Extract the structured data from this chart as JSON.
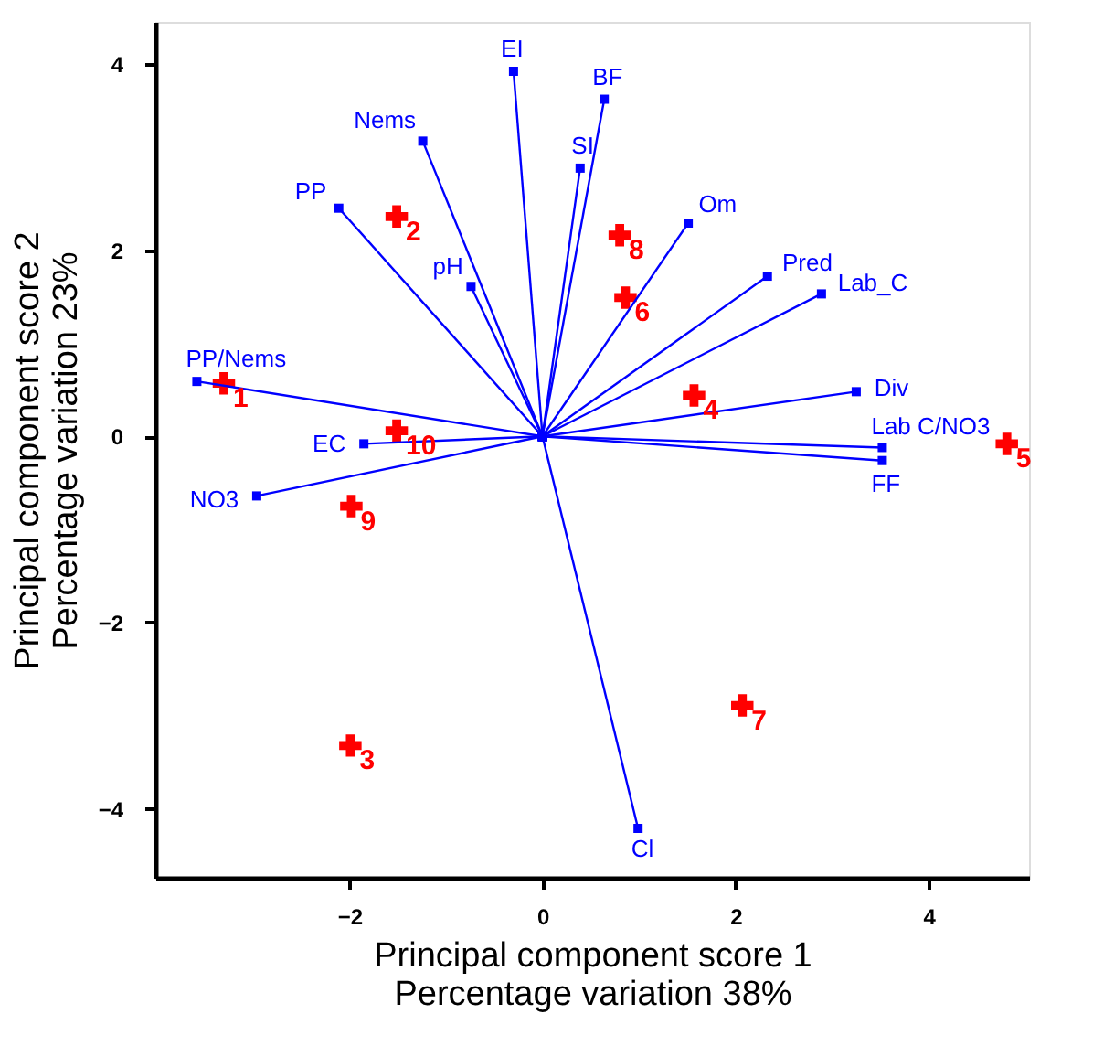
{
  "chart_data": {
    "type": "scatter",
    "xlabel": "Principal component score 1\nPercentage variation 38%",
    "ylabel": "Principal component score 2\nPercentage variation 23%",
    "xlim": [
      -4.01,
      5.04
    ],
    "ylim": [
      -4.74,
      4.45
    ],
    "xticks": [
      -2,
      0,
      2,
      4
    ],
    "yticks": [
      -4,
      -2,
      0,
      2,
      4
    ],
    "grid": false,
    "series": [
      {
        "color": "#ff0000",
        "marker": "cross",
        "x": [
          -3.3,
          -1.51,
          -1.99,
          1.57,
          4.81,
          0.86,
          2.07,
          0.8,
          -1.98,
          -1.51
        ],
        "values": [
          0.57,
          2.36,
          -3.32,
          0.44,
          -0.08,
          1.49,
          -2.89,
          2.16,
          -0.75,
          0.06
        ]
      },
      {
        "type": "line",
        "name": "EI",
        "color": "#0000ff",
        "marker": "square",
        "x": [
          0,
          -0.3
        ],
        "values": [
          0,
          3.92
        ]
      },
      {
        "type": "line",
        "name": "Nems",
        "color": "#0000ff",
        "marker": "square",
        "x": [
          0,
          -1.24
        ],
        "values": [
          0,
          3.17
        ]
      },
      {
        "type": "line",
        "name": "PP",
        "color": "#0000ff",
        "marker": "square",
        "x": [
          0,
          -2.11
        ],
        "values": [
          0,
          2.45
        ]
      },
      {
        "type": "line",
        "name": "pH",
        "color": "#0000ff",
        "marker": "square",
        "x": [
          0,
          -0.74
        ],
        "values": [
          0,
          1.61
        ]
      },
      {
        "type": "line",
        "name": "PP/Nems",
        "color": "#0000ff",
        "marker": "square",
        "x": [
          0,
          -3.58
        ],
        "values": [
          0,
          0.59
        ]
      },
      {
        "type": "line",
        "name": "EC",
        "color": "#0000ff",
        "marker": "square",
        "x": [
          0,
          -1.85
        ],
        "values": [
          0,
          -0.08
        ]
      },
      {
        "type": "line",
        "name": "NO3",
        "color": "#0000ff",
        "marker": "square",
        "x": [
          0,
          -2.96
        ],
        "values": [
          0,
          -0.64
        ]
      },
      {
        "type": "line",
        "name": "BF",
        "color": "#0000ff",
        "marker": "square",
        "x": [
          0,
          0.64
        ],
        "values": [
          0,
          3.62
        ]
      },
      {
        "type": "line",
        "name": "SI",
        "color": "#0000ff",
        "marker": "square",
        "x": [
          0,
          0.39
        ],
        "values": [
          0,
          2.88
        ]
      },
      {
        "type": "line",
        "name": "Om",
        "color": "#0000ff",
        "marker": "square",
        "x": [
          0,
          1.51
        ],
        "values": [
          0,
          2.29
        ]
      },
      {
        "type": "line",
        "name": "Pred",
        "color": "#0000ff",
        "marker": "square",
        "x": [
          0,
          2.33
        ],
        "values": [
          0,
          1.72
        ]
      },
      {
        "type": "line",
        "name": "Lab_C",
        "color": "#0000ff",
        "marker": "square",
        "x": [
          0,
          2.89
        ],
        "values": [
          0,
          1.53
        ]
      },
      {
        "type": "line",
        "name": "Div",
        "color": "#0000ff",
        "marker": "square",
        "x": [
          0,
          3.25
        ],
        "values": [
          0,
          0.48
        ]
      },
      {
        "type": "line",
        "name": "Lab C/NO3",
        "color": "#0000ff",
        "marker": "square",
        "x": [
          0,
          3.52
        ],
        "values": [
          0,
          -0.12
        ]
      },
      {
        "type": "line",
        "name": "FF",
        "color": "#0000ff",
        "marker": "square",
        "x": [
          0,
          3.52
        ],
        "values": [
          0,
          -0.26
        ]
      },
      {
        "type": "line",
        "name": "Cl",
        "color": "#0000ff",
        "marker": "square",
        "x": [
          0,
          0.99
        ],
        "values": [
          0,
          -4.21
        ]
      }
    ],
    "annotations": [
      {
        "text": "1",
        "x": -3.3,
        "y": 0.57
      },
      {
        "text": "2",
        "x": -1.51,
        "y": 2.36
      },
      {
        "text": "3",
        "x": -1.99,
        "y": -3.32
      },
      {
        "text": "4",
        "x": 1.57,
        "y": 0.44
      },
      {
        "text": "5",
        "x": 4.81,
        "y": -0.08
      },
      {
        "text": "6",
        "x": 0.86,
        "y": 1.49
      },
      {
        "text": "7",
        "x": 2.07,
        "y": -2.89
      },
      {
        "text": "8",
        "x": 0.8,
        "y": 2.16
      },
      {
        "text": "9",
        "x": -1.98,
        "y": -0.75
      },
      {
        "text": "10",
        "x": -1.51,
        "y": 0.06
      }
    ]
  }
}
